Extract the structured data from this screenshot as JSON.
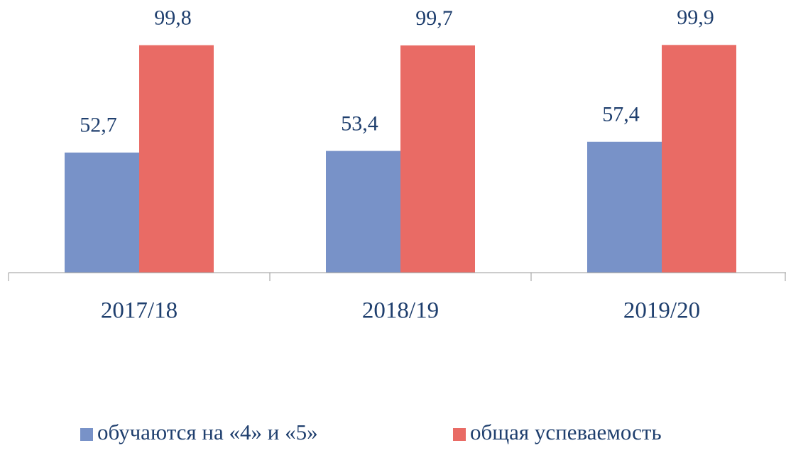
{
  "chart_data": {
    "type": "bar",
    "categories": [
      "2017/18",
      "2018/19",
      "2019/20"
    ],
    "series": [
      {
        "name": "обучаются на «4» и «5»",
        "color": "#7892c8",
        "values": [
          52.7,
          53.4,
          57.4
        ],
        "value_labels": [
          "52,7",
          "53,4",
          "57,4"
        ]
      },
      {
        "name": "общая успеваемость",
        "color": "#e96b65",
        "values": [
          99.8,
          99.7,
          99.9
        ],
        "value_labels": [
          "99,8",
          "99,7",
          "99,9"
        ]
      }
    ],
    "ylim": [
      0,
      100
    ],
    "legend": "bottom"
  }
}
